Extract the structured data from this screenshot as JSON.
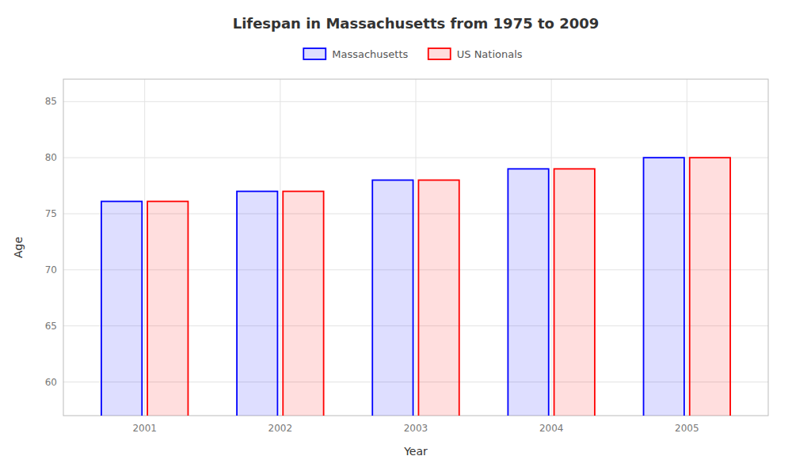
{
  "chart_data": {
    "type": "bar",
    "title": "Lifespan in Massachusetts from 1975 to 2009",
    "xlabel": "Year",
    "ylabel": "Age",
    "categories": [
      2001,
      2002,
      2003,
      2004,
      2005
    ],
    "series": [
      {
        "name": "Massachusetts",
        "color": "#0000ff",
        "values": [
          76.1,
          77.0,
          78.0,
          79.0,
          80.0
        ]
      },
      {
        "name": "US Nationals",
        "color": "#ff0000",
        "values": [
          76.1,
          77.0,
          78.0,
          79.0,
          80.0
        ]
      }
    ],
    "ylim": [
      57,
      87
    ],
    "yticks": [
      60,
      65,
      70,
      75,
      80,
      85
    ],
    "grid": true,
    "legend": "top"
  }
}
